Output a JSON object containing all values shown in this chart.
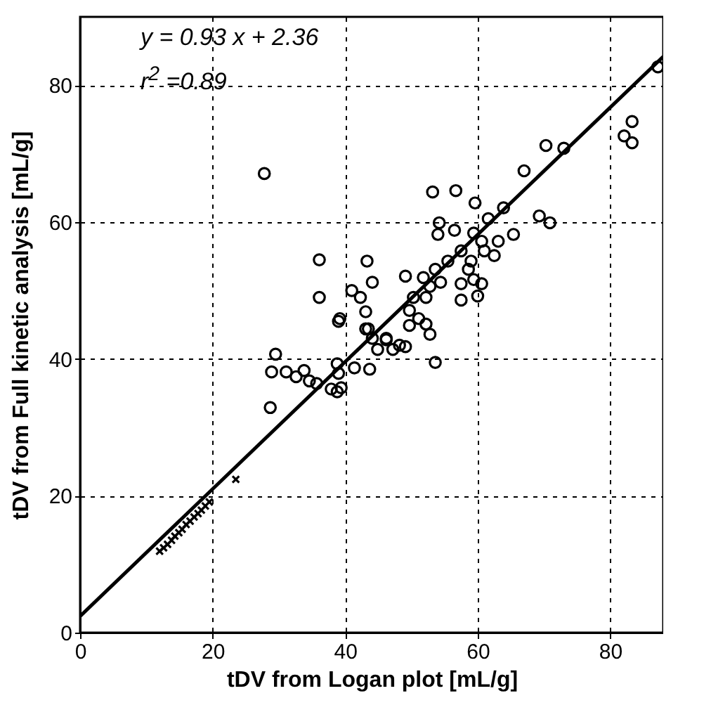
{
  "chart_data": {
    "type": "scatter",
    "xlabel": "tDV from Logan plot [mL/g]",
    "ylabel": "tDV from Full kinetic analysis [mL/g]",
    "annotations": [
      "y = 0.93 x + 2.36",
      "r$^{2}$ =0.89"
    ],
    "xlim": [
      0,
      88
    ],
    "ylim": [
      0,
      90
    ],
    "xticks": [
      0,
      20,
      40,
      60,
      80
    ],
    "yticks": [
      0,
      20,
      40,
      60,
      80
    ],
    "grid": true,
    "series": [
      {
        "marker": "circle",
        "color": "#000000",
        "x": [
          27.8,
          87.2,
          82.1,
          83.3,
          83.3,
          70.3,
          73.0,
          67.0,
          53.2,
          56.7,
          59.6,
          63.9,
          69.3,
          70.9,
          54.2,
          54.0,
          56.5,
          61.6,
          65.4,
          59.4,
          63.1,
          61.0,
          62.5,
          57.5,
          55.5,
          59.0,
          60.6,
          58.6,
          59.4,
          57.5,
          60.6,
          57.5,
          60.0,
          36.1,
          43.3,
          44.1,
          36.1,
          41.0,
          42.3,
          43.1,
          39.2,
          49.1,
          51.8,
          53.6,
          54.4,
          52.8,
          50.3,
          52.2,
          49.7,
          51.1,
          52.2,
          49.7,
          52.8,
          43.5,
          46.2,
          48.2,
          39.0,
          43.1,
          44.1,
          46.2,
          44.9,
          47.2,
          49.1,
          53.6,
          29.5,
          28.9,
          31.1,
          32.6,
          33.8,
          34.6,
          35.7,
          37.9,
          38.8,
          39.0,
          39.4,
          38.8,
          41.4,
          43.7,
          28.7
        ],
        "values": [
          67.1,
          82.7,
          72.6,
          74.7,
          71.6,
          71.2,
          70.8,
          67.5,
          64.4,
          64.6,
          62.8,
          62.1,
          60.9,
          59.9,
          59.9,
          58.2,
          58.8,
          60.5,
          58.2,
          58.4,
          57.2,
          55.8,
          55.1,
          55.8,
          54.3,
          54.3,
          57.2,
          53.1,
          51.6,
          51.0,
          51.0,
          48.6,
          49.2,
          54.5,
          54.3,
          51.2,
          49.0,
          50.0,
          49.0,
          46.9,
          45.9,
          52.1,
          51.9,
          53.1,
          51.2,
          50.6,
          49.0,
          49.0,
          47.1,
          45.9,
          45.1,
          44.9,
          43.6,
          44.4,
          43.0,
          42.0,
          45.5,
          44.4,
          43.0,
          42.8,
          41.4,
          41.4,
          41.8,
          39.5,
          40.7,
          38.1,
          38.1,
          37.4,
          38.3,
          36.8,
          36.4,
          35.6,
          39.3,
          37.9,
          35.8,
          35.2,
          38.7,
          38.5,
          32.9
        ]
      },
      {
        "marker": "cross",
        "color": "#000000",
        "x": [
          12.0,
          12.6,
          13.2,
          13.8,
          14.3,
          14.9,
          15.4,
          16.0,
          16.6,
          17.2,
          17.8,
          18.3,
          18.9,
          19.5,
          23.5
        ],
        "values": [
          11.9,
          12.4,
          12.9,
          13.5,
          14.1,
          14.6,
          15.1,
          15.8,
          16.3,
          16.9,
          17.4,
          17.9,
          18.5,
          19.1,
          22.4
        ]
      },
      {
        "type": "line",
        "color": "#000000",
        "x": [
          0,
          88
        ],
        "values": [
          2.4,
          84.2
        ]
      }
    ]
  }
}
